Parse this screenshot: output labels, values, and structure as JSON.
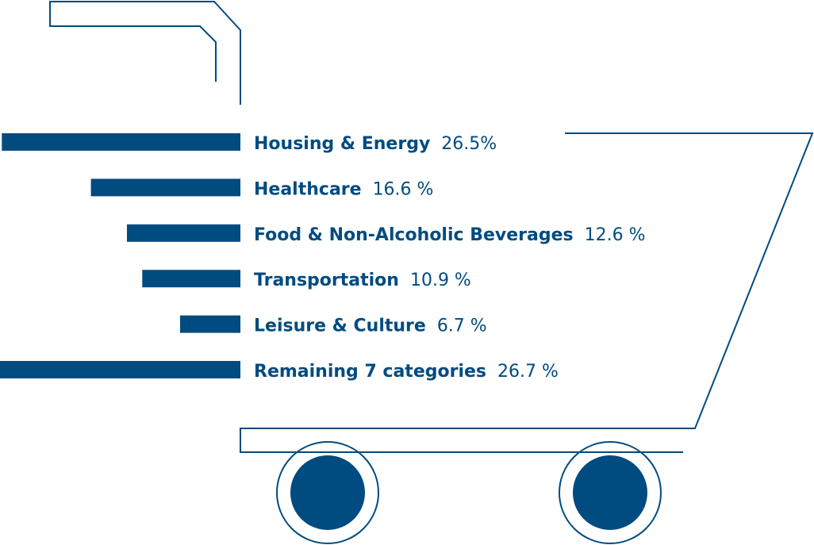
{
  "colors": {
    "primary": "#004b80",
    "background": "#ffffff"
  },
  "chart_data": {
    "type": "bar",
    "orientation": "horizontal",
    "categories": [
      "Housing & Energy",
      "Healthcare",
      "Food & Non-Alcoholic Beverages",
      "Transportation",
      "Leisure & Culture",
      "Remaining 7 categories"
    ],
    "values": [
      26.5,
      16.6,
      12.6,
      10.9,
      6.7,
      26.7
    ],
    "value_labels": [
      "26.5%",
      "16.6 %",
      "12.6 %",
      "10.9 %",
      "6.7 %",
      "26.7 %"
    ],
    "unit": "%",
    "xlim": [
      0,
      26.7
    ],
    "grid": false,
    "legend": "none"
  }
}
